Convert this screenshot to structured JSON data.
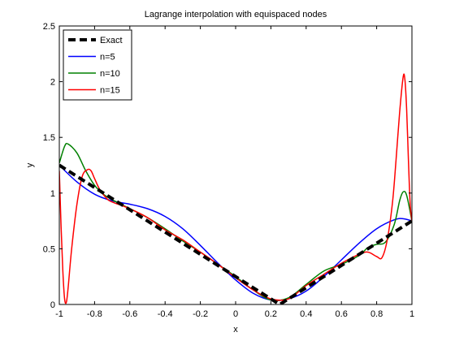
{
  "chart_data": {
    "type": "line",
    "title": "Lagrange interpolation with equispaced nodes",
    "xlabel": "x",
    "ylabel": "y",
    "xlim": [
      -1,
      1
    ],
    "ylim": [
      0,
      2.5
    ],
    "xticks": [
      "-1",
      "-0.8",
      "-0.6",
      "-0.4",
      "-0.2",
      "0",
      "0.2",
      "0.4",
      "0.6",
      "0.8",
      "1"
    ],
    "yticks": [
      "0",
      "0.5",
      "1",
      "1.5",
      "2",
      "2.5"
    ],
    "grid": false,
    "legend_position": "top-left",
    "series": [
      {
        "name": "Exact",
        "color": "#000000",
        "style": "dashed",
        "x": [
          -1,
          0.25,
          1
        ],
        "y": [
          1.25,
          0.0,
          0.75
        ]
      },
      {
        "name": "n=5",
        "color": "#0000ff",
        "style": "solid",
        "x": [
          -1,
          -0.9,
          -0.8,
          -0.7,
          -0.6,
          -0.5,
          -0.4,
          -0.3,
          -0.2,
          -0.1,
          0,
          0.1,
          0.2,
          0.3,
          0.4,
          0.5,
          0.6,
          0.7,
          0.8,
          0.9,
          0.95,
          1
        ],
        "y": [
          1.25,
          1.1,
          0.99,
          0.93,
          0.9,
          0.86,
          0.79,
          0.68,
          0.53,
          0.37,
          0.22,
          0.1,
          0.04,
          0.05,
          0.12,
          0.25,
          0.4,
          0.55,
          0.68,
          0.76,
          0.77,
          0.75
        ]
      },
      {
        "name": "n=10",
        "color": "#008000",
        "style": "solid",
        "x": [
          -1,
          -0.97,
          -0.95,
          -0.9,
          -0.85,
          -0.8,
          -0.75,
          -0.7,
          -0.6,
          -0.5,
          -0.4,
          -0.3,
          -0.2,
          -0.1,
          0,
          0.1,
          0.2,
          0.3,
          0.4,
          0.5,
          0.6,
          0.7,
          0.75,
          0.8,
          0.85,
          0.9,
          0.93,
          0.95,
          0.97,
          1
        ],
        "y": [
          1.27,
          1.42,
          1.44,
          1.36,
          1.2,
          1.07,
          0.99,
          0.94,
          0.86,
          0.78,
          0.68,
          0.57,
          0.47,
          0.36,
          0.25,
          0.13,
          0.04,
          0.06,
          0.18,
          0.3,
          0.36,
          0.44,
          0.51,
          0.54,
          0.56,
          0.72,
          0.93,
          1.01,
          0.98,
          0.75
        ]
      },
      {
        "name": "n=15",
        "color": "#ff0000",
        "style": "solid",
        "x": [
          -1,
          -0.99,
          -0.98,
          -0.97,
          -0.96,
          -0.95,
          -0.93,
          -0.9,
          -0.87,
          -0.84,
          -0.82,
          -0.8,
          -0.77,
          -0.73,
          -0.7,
          -0.6,
          -0.5,
          -0.4,
          -0.3,
          -0.2,
          -0.1,
          0,
          0.1,
          0.2,
          0.3,
          0.4,
          0.5,
          0.6,
          0.7,
          0.75,
          0.8,
          0.83,
          0.86,
          0.89,
          0.91,
          0.93,
          0.95,
          0.96,
          0.97,
          0.98,
          0.99,
          1
        ],
        "y": [
          1.2,
          0.7,
          0.3,
          0.05,
          0.02,
          0.15,
          0.5,
          0.9,
          1.15,
          1.21,
          1.2,
          1.13,
          1.03,
          0.95,
          0.92,
          0.86,
          0.78,
          0.67,
          0.58,
          0.47,
          0.36,
          0.24,
          0.13,
          0.05,
          0.05,
          0.17,
          0.27,
          0.37,
          0.45,
          0.47,
          0.43,
          0.42,
          0.58,
          0.92,
          1.3,
          1.72,
          2.04,
          2.02,
          1.75,
          1.3,
          0.9,
          0.75
        ]
      }
    ]
  }
}
